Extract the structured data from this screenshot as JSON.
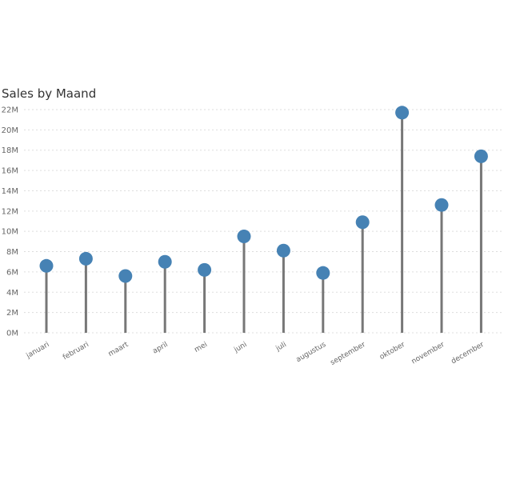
{
  "chart_data": {
    "type": "lollipop",
    "title": "Sales by Maand",
    "xlabel": "",
    "ylabel": "",
    "categories": [
      "januari",
      "februari",
      "maart",
      "april",
      "mei",
      "juni",
      "juli",
      "augustus",
      "september",
      "oktober",
      "november",
      "december"
    ],
    "values": [
      6.6,
      7.3,
      5.6,
      7.0,
      6.2,
      9.5,
      8.1,
      5.9,
      10.9,
      21.7,
      12.6,
      17.4
    ],
    "value_unit": "M",
    "ylim": [
      0,
      22
    ],
    "yticks": [
      0,
      2,
      4,
      6,
      8,
      10,
      12,
      14,
      16,
      18,
      20,
      22
    ],
    "ytick_labels": [
      "0M",
      "2M",
      "4M",
      "6M",
      "8M",
      "10M",
      "12M",
      "14M",
      "16M",
      "18M",
      "20M",
      "22M"
    ],
    "grid": true,
    "colors": {
      "marker": "#4682b4",
      "stem": "#777777",
      "grid": "#dddddd"
    }
  }
}
